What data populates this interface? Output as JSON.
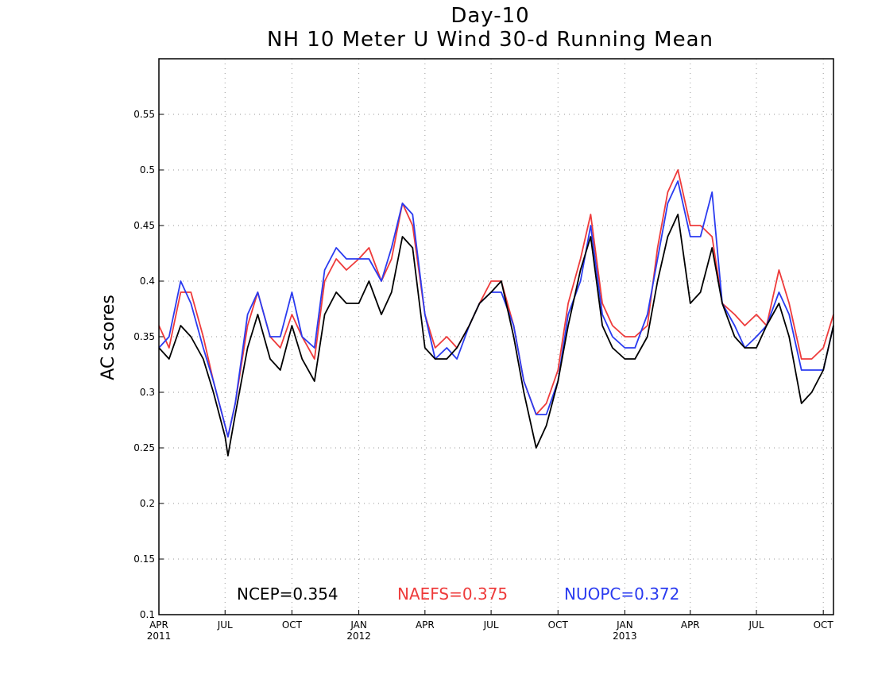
{
  "chart_data": {
    "type": "line",
    "title": "Day-10",
    "subtitle": "NH 10 Meter U Wind 30-d Running Mean",
    "xlabel": "",
    "ylabel": "AC scores",
    "ylim": [
      0.1,
      0.6
    ],
    "yticks": [
      0.1,
      0.15,
      0.2,
      0.25,
      0.3,
      0.35,
      0.4,
      0.45,
      0.5,
      0.55
    ],
    "ytick_labels": [
      "0.1",
      "0.15",
      "0.2",
      "0.25",
      "0.3",
      "0.35",
      "0.4",
      "0.45",
      "0.5",
      "0.55"
    ],
    "xlim": [
      "2011-04-01",
      "2013-10-15"
    ],
    "xticks": [
      {
        "date": "2011-04-01",
        "label": "APR",
        "year": "2011"
      },
      {
        "date": "2011-07-01",
        "label": "JUL",
        "year": ""
      },
      {
        "date": "2011-10-01",
        "label": "OCT",
        "year": ""
      },
      {
        "date": "2012-01-01",
        "label": "JAN",
        "year": "2012"
      },
      {
        "date": "2012-04-01",
        "label": "APR",
        "year": ""
      },
      {
        "date": "2012-07-01",
        "label": "JUL",
        "year": ""
      },
      {
        "date": "2012-10-01",
        "label": "OCT",
        "year": ""
      },
      {
        "date": "2013-01-01",
        "label": "JAN",
        "year": "2013"
      },
      {
        "date": "2013-04-01",
        "label": "APR",
        "year": ""
      },
      {
        "date": "2013-07-01",
        "label": "JUL",
        "year": ""
      },
      {
        "date": "2013-10-01",
        "label": "OCT",
        "year": ""
      }
    ],
    "grid": true,
    "legend_position": "bottom",
    "series": [
      {
        "name": "NCEP",
        "label": "NCEP=0.354",
        "color": "#000000",
        "x": [
          "2011-04-01",
          "2011-04-15",
          "2011-05-01",
          "2011-05-15",
          "2011-06-01",
          "2011-06-15",
          "2011-07-01",
          "2011-07-05",
          "2011-07-15",
          "2011-08-01",
          "2011-08-15",
          "2011-09-01",
          "2011-09-15",
          "2011-10-01",
          "2011-10-15",
          "2011-11-01",
          "2011-11-15",
          "2011-12-01",
          "2011-12-15",
          "2012-01-01",
          "2012-01-15",
          "2012-02-01",
          "2012-02-15",
          "2012-03-01",
          "2012-03-15",
          "2012-04-01",
          "2012-04-15",
          "2012-05-01",
          "2012-05-15",
          "2012-06-01",
          "2012-06-15",
          "2012-07-01",
          "2012-07-15",
          "2012-08-01",
          "2012-08-15",
          "2012-09-01",
          "2012-09-15",
          "2012-10-01",
          "2012-10-15",
          "2012-11-01",
          "2012-11-15",
          "2012-12-01",
          "2012-12-15",
          "2013-01-01",
          "2013-01-15",
          "2013-02-01",
          "2013-02-15",
          "2013-03-01",
          "2013-03-15",
          "2013-04-01",
          "2013-04-15",
          "2013-05-01",
          "2013-05-15",
          "2013-06-01",
          "2013-06-15",
          "2013-07-01",
          "2013-07-15",
          "2013-08-01",
          "2013-08-15",
          "2013-09-01",
          "2013-09-15",
          "2013-10-01",
          "2013-10-15"
        ],
        "values": [
          0.34,
          0.33,
          0.36,
          0.35,
          0.33,
          0.3,
          0.26,
          0.243,
          0.28,
          0.34,
          0.37,
          0.33,
          0.32,
          0.36,
          0.33,
          0.31,
          0.37,
          0.39,
          0.38,
          0.38,
          0.4,
          0.37,
          0.39,
          0.44,
          0.43,
          0.34,
          0.33,
          0.33,
          0.34,
          0.36,
          0.38,
          0.39,
          0.4,
          0.35,
          0.3,
          0.25,
          0.27,
          0.31,
          0.36,
          0.41,
          0.44,
          0.36,
          0.34,
          0.33,
          0.33,
          0.35,
          0.4,
          0.44,
          0.46,
          0.38,
          0.39,
          0.43,
          0.38,
          0.35,
          0.34,
          0.34,
          0.36,
          0.38,
          0.35,
          0.29,
          0.3,
          0.32,
          0.36
        ]
      },
      {
        "name": "NAEFS",
        "label": "NAEFS=0.375",
        "color": "#ee3b3b",
        "x": [
          "2011-04-01",
          "2011-04-15",
          "2011-05-01",
          "2011-05-15",
          "2011-06-01",
          "2011-06-15",
          "2011-07-01",
          "2011-07-05",
          "2011-07-15",
          "2011-08-01",
          "2011-08-15",
          "2011-09-01",
          "2011-09-15",
          "2011-10-01",
          "2011-10-15",
          "2011-11-01",
          "2011-11-15",
          "2011-12-01",
          "2011-12-15",
          "2012-01-01",
          "2012-01-15",
          "2012-02-01",
          "2012-02-15",
          "2012-03-01",
          "2012-03-15",
          "2012-04-01",
          "2012-04-15",
          "2012-05-01",
          "2012-05-15",
          "2012-06-01",
          "2012-06-15",
          "2012-07-01",
          "2012-07-15",
          "2012-08-01",
          "2012-08-15",
          "2012-09-01",
          "2012-09-15",
          "2012-10-01",
          "2012-10-15",
          "2012-11-01",
          "2012-11-15",
          "2012-12-01",
          "2012-12-15",
          "2013-01-01",
          "2013-01-15",
          "2013-02-01",
          "2013-02-15",
          "2013-03-01",
          "2013-03-15",
          "2013-04-01",
          "2013-04-15",
          "2013-05-01",
          "2013-05-15",
          "2013-06-01",
          "2013-06-15",
          "2013-07-01",
          "2013-07-15",
          "2013-08-01",
          "2013-08-15",
          "2013-09-01",
          "2013-09-15",
          "2013-10-01",
          "2013-10-15"
        ],
        "values": [
          0.36,
          0.34,
          0.39,
          0.39,
          0.35,
          0.31,
          0.27,
          0.26,
          0.29,
          0.36,
          0.39,
          0.35,
          0.34,
          0.37,
          0.35,
          0.33,
          0.4,
          0.42,
          0.41,
          0.42,
          0.43,
          0.4,
          0.42,
          0.47,
          0.45,
          0.37,
          0.34,
          0.35,
          0.34,
          0.36,
          0.38,
          0.4,
          0.4,
          0.36,
          0.31,
          0.28,
          0.29,
          0.32,
          0.38,
          0.42,
          0.46,
          0.38,
          0.36,
          0.35,
          0.35,
          0.36,
          0.43,
          0.48,
          0.5,
          0.45,
          0.45,
          0.44,
          0.38,
          0.37,
          0.36,
          0.37,
          0.36,
          0.41,
          0.38,
          0.33,
          0.33,
          0.34,
          0.37
        ]
      },
      {
        "name": "NUOPC",
        "label": "NUOPC=0.372",
        "color": "#2a3bf0",
        "x": [
          "2011-04-01",
          "2011-04-15",
          "2011-05-01",
          "2011-05-15",
          "2011-06-01",
          "2011-06-15",
          "2011-07-01",
          "2011-07-05",
          "2011-07-15",
          "2011-08-01",
          "2011-08-15",
          "2011-09-01",
          "2011-09-15",
          "2011-10-01",
          "2011-10-15",
          "2011-11-01",
          "2011-11-15",
          "2011-12-01",
          "2011-12-15",
          "2012-01-01",
          "2012-01-15",
          "2012-02-01",
          "2012-02-15",
          "2012-03-01",
          "2012-03-15",
          "2012-04-01",
          "2012-04-15",
          "2012-05-01",
          "2012-05-15",
          "2012-06-01",
          "2012-06-15",
          "2012-07-01",
          "2012-07-15",
          "2012-08-01",
          "2012-08-15",
          "2012-09-01",
          "2012-09-15",
          "2012-10-01",
          "2012-10-15",
          "2012-11-01",
          "2012-11-15",
          "2012-12-01",
          "2012-12-15",
          "2013-01-01",
          "2013-01-15",
          "2013-02-01",
          "2013-02-15",
          "2013-03-01",
          "2013-03-15",
          "2013-04-01",
          "2013-04-15",
          "2013-05-01",
          "2013-05-15",
          "2013-06-01",
          "2013-06-15",
          "2013-07-01",
          "2013-07-15",
          "2013-08-01",
          "2013-08-15",
          "2013-09-01",
          "2013-09-15",
          "2013-10-01",
          "2013-10-15"
        ],
        "values": [
          0.34,
          0.35,
          0.4,
          0.38,
          0.34,
          0.31,
          0.27,
          0.26,
          0.29,
          0.37,
          0.39,
          0.35,
          0.35,
          0.39,
          0.35,
          0.34,
          0.41,
          0.43,
          0.42,
          0.42,
          0.42,
          0.4,
          0.43,
          0.47,
          0.46,
          0.37,
          0.33,
          0.34,
          0.33,
          0.36,
          0.38,
          0.39,
          0.39,
          0.36,
          0.31,
          0.28,
          0.28,
          0.31,
          0.37,
          0.4,
          0.45,
          0.37,
          0.35,
          0.34,
          0.34,
          0.37,
          0.42,
          0.47,
          0.49,
          0.44,
          0.44,
          0.48,
          0.38,
          0.36,
          0.34,
          0.35,
          0.36,
          0.39,
          0.37,
          0.32,
          0.32,
          0.32,
          0.36
        ]
      }
    ]
  }
}
